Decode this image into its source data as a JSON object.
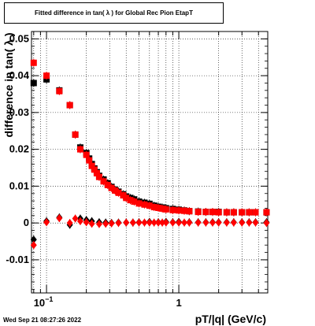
{
  "title": "Fitted difference in tan( λ ) for Global Rec Pion EtapT",
  "ylabel": "difference in tan( λ )",
  "xlabel": "pT/|q| (GeV/c)",
  "timestamp": "Wed Sep 21 08:27:26 2022",
  "chart_data": {
    "type": "scatter",
    "xscale": "log",
    "xlim": [
      0.077,
      4.7
    ],
    "ylim": [
      -0.019,
      0.052
    ],
    "grid": true,
    "yticks": [
      -0.01,
      0,
      0.01,
      0.02,
      0.03,
      0.04,
      0.05
    ],
    "yticklabels": [
      "-0.01",
      "0",
      "0.01",
      "0.02",
      "0.03",
      "0.04",
      "0.05"
    ],
    "xticks": [
      0.1,
      1
    ],
    "xticklabels": [
      "10^-1",
      "1"
    ],
    "colors": {
      "black": "#000000",
      "red": "#ff0000"
    },
    "series": [
      {
        "marker": "square",
        "color": "black",
        "x": [
          0.08,
          0.1,
          0.125,
          0.15,
          0.165,
          0.18,
          0.2,
          0.21,
          0.22,
          0.23,
          0.24,
          0.25,
          0.27,
          0.29,
          0.31,
          0.33,
          0.35,
          0.38,
          0.4,
          0.43,
          0.46,
          0.5,
          0.55,
          0.6,
          0.65,
          0.7,
          0.75,
          0.8,
          0.9,
          1.0,
          1.1,
          1.2,
          1.4,
          1.6,
          1.8,
          2.0,
          2.3,
          2.6,
          3.0,
          3.4,
          3.8,
          4.6
        ],
        "y": [
          0.038,
          0.039,
          0.036,
          0.032,
          0.024,
          0.0205,
          0.019,
          0.0175,
          0.016,
          0.0148,
          0.0138,
          0.0128,
          0.0118,
          0.0108,
          0.0098,
          0.009,
          0.0085,
          0.0078,
          0.0072,
          0.0068,
          0.0064,
          0.0058,
          0.0055,
          0.0052,
          0.0047,
          0.0044,
          0.0042,
          0.004,
          0.0038,
          0.0036,
          0.0034,
          0.0032,
          0.0031,
          0.003,
          0.003,
          0.003,
          0.0029,
          0.0029,
          0.0029,
          0.0029,
          0.0029,
          0.0029
        ]
      },
      {
        "marker": "square",
        "color": "red",
        "x": [
          0.08,
          0.1,
          0.125,
          0.15,
          0.165,
          0.18,
          0.2,
          0.21,
          0.22,
          0.23,
          0.24,
          0.25,
          0.27,
          0.29,
          0.31,
          0.33,
          0.35,
          0.38,
          0.4,
          0.43,
          0.46,
          0.5,
          0.55,
          0.6,
          0.65,
          0.7,
          0.75,
          0.8,
          0.9,
          1.0,
          1.1,
          1.2,
          1.4,
          1.6,
          1.8,
          2.0,
          2.3,
          2.6,
          3.0,
          3.4,
          3.8,
          4.6
        ],
        "y": [
          0.0435,
          0.04,
          0.0358,
          0.032,
          0.024,
          0.02,
          0.0185,
          0.017,
          0.0155,
          0.0145,
          0.0135,
          0.0125,
          0.0113,
          0.0103,
          0.0095,
          0.0088,
          0.0082,
          0.0075,
          0.0068,
          0.0062,
          0.0058,
          0.0053,
          0.005,
          0.0047,
          0.0043,
          0.0041,
          0.0039,
          0.0037,
          0.0035,
          0.0034,
          0.0033,
          0.0032,
          0.003,
          0.003,
          0.003,
          0.0029,
          0.0029,
          0.0029,
          0.0029,
          0.0029,
          0.0029,
          0.0029
        ]
      },
      {
        "marker": "diamond",
        "color": "black",
        "x": [
          0.08,
          0.1,
          0.125,
          0.15,
          0.18,
          0.2,
          0.22,
          0.25,
          0.28,
          0.31,
          0.35,
          0.4,
          0.45,
          0.5,
          0.6,
          0.7,
          0.8,
          0.9,
          1.0,
          1.2,
          1.4,
          1.6,
          1.8,
          2.0,
          2.3,
          2.6,
          3.0,
          3.4,
          3.8,
          4.6
        ],
        "y": [
          -0.0045,
          0.0005,
          0.0015,
          -0.0005,
          0.0012,
          0.0008,
          0.0005,
          0.0002,
          0.0001,
          0.0,
          0.0001,
          0.0001,
          0.0001,
          0.0002,
          0.0003,
          0.0002,
          0.0003,
          0.0002,
          0.0003,
          0.0002,
          0.0002,
          0.0002,
          0.0002,
          0.0002,
          0.0002,
          0.0002,
          0.0002,
          0.0002,
          0.0002,
          0.0002
        ]
      },
      {
        "marker": "diamond",
        "color": "red",
        "x": [
          0.08,
          0.1,
          0.125,
          0.15,
          0.165,
          0.18,
          0.2,
          0.22,
          0.25,
          0.28,
          0.31,
          0.35,
          0.4,
          0.45,
          0.5,
          0.55,
          0.6,
          0.65,
          0.7,
          0.75,
          0.8,
          0.9,
          1.0,
          1.1,
          1.2,
          1.4,
          1.6,
          1.8,
          2.0,
          2.3,
          2.6,
          3.0,
          3.4,
          3.8,
          4.6
        ],
        "y": [
          -0.006,
          0.0002,
          0.0013,
          0.0,
          0.0012,
          0.0005,
          0.0002,
          -0.0002,
          -0.0003,
          -0.0002,
          -0.0001,
          0.0,
          0.0001,
          0.0001,
          0.0001,
          0.0001,
          0.0001,
          0.0001,
          0.0001,
          0.0001,
          0.0001,
          0.0001,
          0.0001,
          0.0001,
          0.0001,
          0.0001,
          0.0001,
          0.0001,
          0.0001,
          0.0001,
          0.0001,
          0.0001,
          0.0001,
          0.0001,
          0.0
        ]
      }
    ]
  }
}
